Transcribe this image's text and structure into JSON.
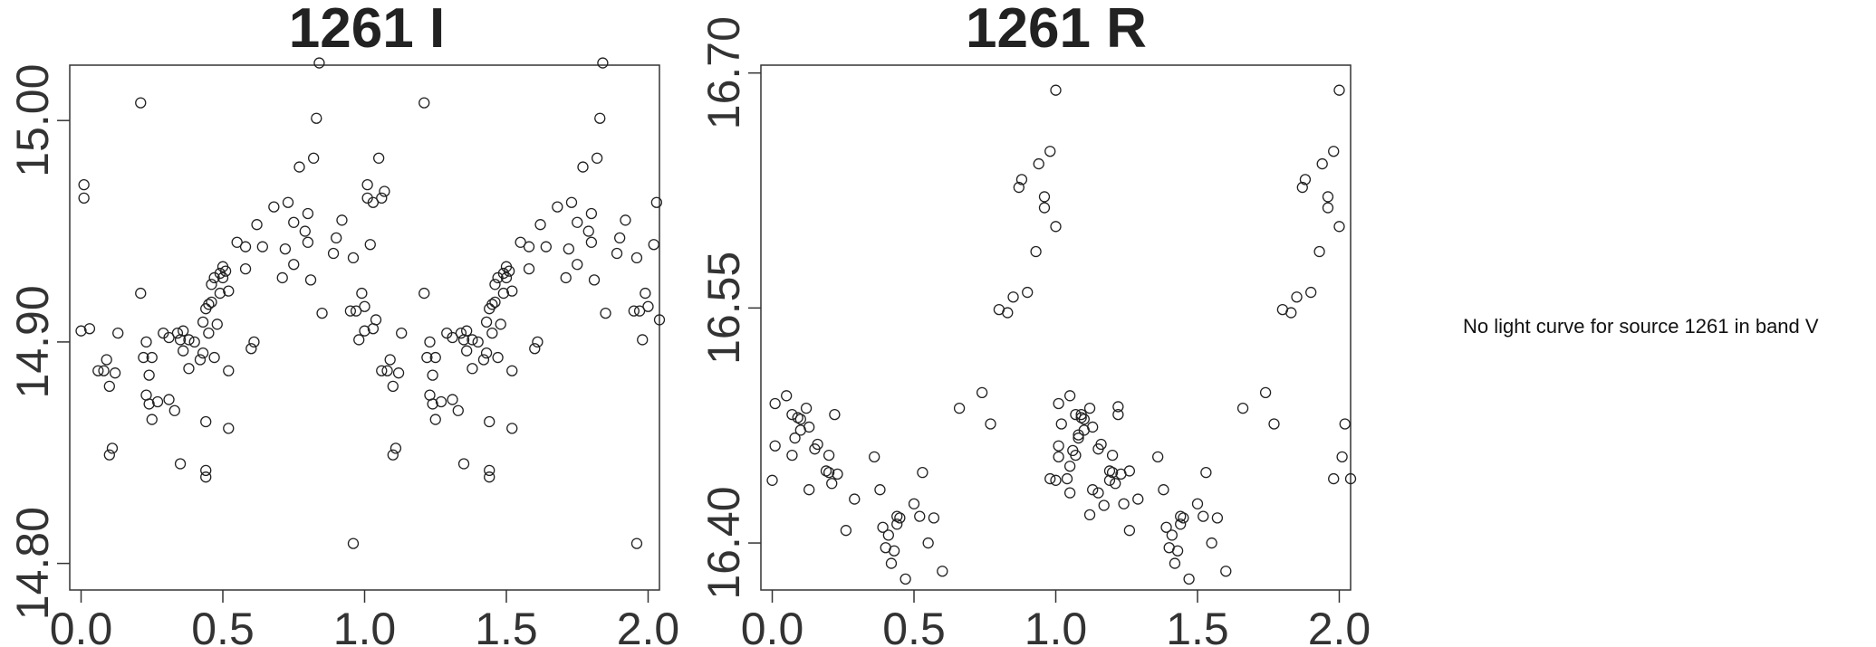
{
  "chart_data": [
    {
      "type": "scatter",
      "title": "1261 I",
      "xlabel": "",
      "ylabel": "",
      "xlim": [
        -0.04,
        2.04
      ],
      "ylim": [
        15.025,
        14.788
      ],
      "y_inverted": true,
      "x_ticks": [
        "0.0",
        "0.5",
        "1.0",
        "1.5",
        "2.0"
      ],
      "y_ticks": [
        "14.80",
        "14.90",
        "15.00"
      ],
      "marker_color": "#222222",
      "points": [
        [
          0.0,
          14.905
        ],
        [
          0.03,
          14.906
        ],
        [
          0.01,
          14.965
        ],
        [
          0.01,
          14.971
        ],
        [
          0.06,
          14.887
        ],
        [
          0.08,
          14.887
        ],
        [
          0.09,
          14.892
        ],
        [
          0.1,
          14.88
        ],
        [
          0.1,
          14.849
        ],
        [
          0.11,
          14.852
        ],
        [
          0.12,
          14.886
        ],
        [
          0.13,
          14.904
        ],
        [
          0.21,
          14.922
        ],
        [
          0.21,
          15.008
        ],
        [
          0.22,
          14.893
        ],
        [
          0.23,
          14.876
        ],
        [
          0.23,
          14.9
        ],
        [
          0.24,
          14.885
        ],
        [
          0.24,
          14.872
        ],
        [
          0.25,
          14.865
        ],
        [
          0.25,
          14.893
        ],
        [
          0.27,
          14.873
        ],
        [
          0.29,
          14.904
        ],
        [
          0.31,
          14.874
        ],
        [
          0.31,
          14.902
        ],
        [
          0.33,
          14.869
        ],
        [
          0.34,
          14.904
        ],
        [
          0.35,
          14.901
        ],
        [
          0.35,
          14.845
        ],
        [
          0.36,
          14.896
        ],
        [
          0.36,
          14.905
        ],
        [
          0.38,
          14.888
        ],
        [
          0.38,
          14.901
        ],
        [
          0.4,
          14.9
        ],
        [
          0.42,
          14.892
        ],
        [
          0.43,
          14.909
        ],
        [
          0.43,
          14.895
        ],
        [
          0.44,
          14.864
        ],
        [
          0.45,
          14.904
        ],
        [
          0.45,
          14.917
        ],
        [
          0.46,
          14.918
        ],
        [
          0.46,
          14.926
        ],
        [
          0.47,
          14.929
        ],
        [
          0.44,
          14.915
        ],
        [
          0.47,
          14.893
        ],
        [
          0.48,
          14.908
        ],
        [
          0.49,
          14.922
        ],
        [
          0.49,
          14.931
        ],
        [
          0.5,
          14.934
        ],
        [
          0.5,
          14.929
        ],
        [
          0.51,
          14.932
        ],
        [
          0.52,
          14.887
        ],
        [
          0.52,
          14.923
        ],
        [
          0.55,
          14.945
        ],
        [
          0.58,
          14.933
        ],
        [
          0.58,
          14.943
        ],
        [
          0.6,
          14.897
        ],
        [
          0.61,
          14.9
        ],
        [
          0.62,
          14.953
        ],
        [
          0.64,
          14.943
        ],
        [
          0.44,
          14.839
        ],
        [
          0.44,
          14.842
        ],
        [
          0.52,
          14.861
        ],
        [
          0.68,
          14.961
        ],
        [
          0.71,
          14.929
        ],
        [
          0.72,
          14.942
        ],
        [
          0.73,
          14.963
        ],
        [
          0.75,
          14.935
        ],
        [
          0.75,
          14.954
        ],
        [
          0.77,
          14.979
        ],
        [
          0.79,
          14.95
        ],
        [
          0.8,
          14.945
        ],
        [
          0.8,
          14.958
        ],
        [
          0.81,
          14.928
        ],
        [
          0.82,
          14.983
        ],
        [
          0.83,
          15.001
        ],
        [
          0.84,
          15.026
        ],
        [
          0.85,
          14.913
        ],
        [
          0.89,
          14.94
        ],
        [
          0.9,
          14.947
        ],
        [
          0.92,
          14.955
        ],
        [
          0.95,
          14.914
        ],
        [
          0.96,
          14.938
        ],
        [
          0.97,
          14.914
        ],
        [
          0.98,
          14.901
        ],
        [
          0.99,
          14.922
        ],
        [
          1.0,
          14.916
        ],
        [
          1.02,
          14.944
        ],
        [
          1.03,
          14.963
        ],
        [
          1.04,
          14.91
        ],
        [
          1.05,
          14.983
        ],
        [
          1.06,
          14.965
        ],
        [
          1.07,
          14.968
        ],
        [
          0.96,
          14.809
        ]
      ]
    },
    {
      "type": "scatter",
      "title": "1261 R",
      "xlabel": "",
      "ylabel": "",
      "xlim": [
        -0.04,
        2.04
      ],
      "ylim": [
        16.705,
        16.37
      ],
      "y_inverted": true,
      "x_ticks": [
        "0.0",
        "0.5",
        "1.0",
        "1.5",
        "2.0"
      ],
      "y_ticks": [
        "16.40",
        "16.55",
        "16.70"
      ],
      "marker_color": "#222222",
      "points": [
        [
          0.0,
          16.44
        ],
        [
          0.01,
          16.462
        ],
        [
          0.01,
          16.489
        ],
        [
          0.05,
          16.494
        ],
        [
          0.07,
          16.456
        ],
        [
          0.07,
          16.482
        ],
        [
          0.08,
          16.467
        ],
        [
          0.09,
          16.48
        ],
        [
          0.1,
          16.479
        ],
        [
          0.1,
          16.472
        ],
        [
          0.12,
          16.486
        ],
        [
          0.13,
          16.474
        ],
        [
          0.13,
          16.434
        ],
        [
          0.15,
          16.46
        ],
        [
          0.16,
          16.463
        ],
        [
          0.19,
          16.446
        ],
        [
          0.2,
          16.445
        ],
        [
          0.2,
          16.456
        ],
        [
          0.21,
          16.438
        ],
        [
          0.22,
          16.482
        ],
        [
          0.23,
          16.444
        ],
        [
          0.26,
          16.408
        ],
        [
          0.29,
          16.428
        ],
        [
          0.36,
          16.455
        ],
        [
          0.38,
          16.434
        ],
        [
          0.39,
          16.41
        ],
        [
          0.4,
          16.397
        ],
        [
          0.41,
          16.405
        ],
        [
          0.42,
          16.387
        ],
        [
          0.43,
          16.395
        ],
        [
          0.44,
          16.412
        ],
        [
          0.44,
          16.417
        ],
        [
          0.45,
          16.416
        ],
        [
          0.47,
          16.377
        ],
        [
          0.5,
          16.425
        ],
        [
          0.52,
          16.417
        ],
        [
          0.53,
          16.445
        ],
        [
          0.55,
          16.4
        ],
        [
          0.57,
          16.416
        ],
        [
          0.6,
          16.382
        ],
        [
          0.66,
          16.486
        ],
        [
          0.74,
          16.496
        ],
        [
          0.77,
          16.476
        ],
        [
          0.8,
          16.549
        ],
        [
          0.83,
          16.547
        ],
        [
          0.85,
          16.557
        ],
        [
          0.87,
          16.627
        ],
        [
          0.88,
          16.632
        ],
        [
          0.9,
          16.56
        ],
        [
          0.93,
          16.586
        ],
        [
          0.94,
          16.642
        ],
        [
          0.96,
          16.614
        ],
        [
          0.96,
          16.621
        ],
        [
          0.98,
          16.65
        ],
        [
          0.98,
          16.441
        ],
        [
          1.0,
          16.602
        ],
        [
          1.0,
          16.689
        ],
        [
          1.01,
          16.455
        ],
        [
          1.02,
          16.476
        ],
        [
          1.04,
          16.441
        ],
        [
          1.05,
          16.449
        ],
        [
          1.05,
          16.432
        ],
        [
          1.06,
          16.459
        ],
        [
          1.08,
          16.469
        ],
        [
          1.09,
          16.482
        ],
        [
          1.12,
          16.418
        ],
        [
          1.15,
          16.432
        ],
        [
          1.17,
          16.424
        ],
        [
          1.19,
          16.44
        ],
        [
          1.22,
          16.487
        ],
        [
          1.24,
          16.425
        ],
        [
          1.26,
          16.446
        ]
      ]
    }
  ],
  "notes": {
    "band_v_missing": "No light curve for source 1261 in band V"
  }
}
